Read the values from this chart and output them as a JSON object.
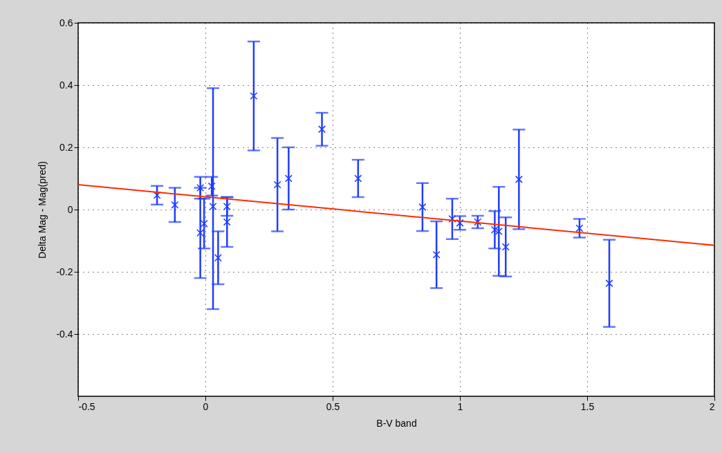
{
  "chart_data": {
    "type": "scatter",
    "xlabel": "B-V band",
    "ylabel": "Delta Mag - Mag(pred)",
    "xlim": [
      -0.5,
      2
    ],
    "xticks": [
      -0.5,
      0,
      0.5,
      1,
      1.5,
      2
    ],
    "ylim": [
      -0.6,
      0.6
    ],
    "yticks": [
      -0.4,
      -0.2,
      0,
      0.2,
      0.4,
      0.6
    ],
    "grid": true,
    "series": [
      {
        "color": "#1f3cff",
        "marker": "cross",
        "x": [
          -0.19,
          -0.12,
          -0.02,
          -0.02,
          -0.005,
          0.025,
          0.03,
          0.05,
          0.085,
          0.085,
          0.19,
          0.283,
          0.327,
          0.458,
          0.6,
          0.853,
          0.908,
          0.97,
          1.0,
          1.07,
          1.137,
          1.153,
          1.18,
          1.232,
          1.47,
          1.587
        ],
        "values": [
          0.046,
          0.015,
          0.07,
          -0.075,
          -0.045,
          0.075,
          0.01,
          -0.155,
          0.01,
          -0.04,
          0.365,
          0.08,
          0.1,
          0.258,
          0.1,
          0.008,
          -0.145,
          -0.03,
          -0.043,
          -0.04,
          -0.065,
          -0.07,
          -0.12,
          0.097,
          -0.06,
          -0.237
        ],
        "errors": [
          0.03,
          0.055,
          0.035,
          0.145,
          0.08,
          0.03,
          [
            -0.32,
            0.39
          ],
          0.085,
          0.03,
          0.08,
          0.175,
          0.15,
          0.1,
          0.053,
          0.06,
          0.077,
          0.107,
          0.065,
          0.022,
          0.02,
          0.06,
          0.143,
          0.095,
          0.16,
          0.03,
          0.14
        ]
      },
      {
        "type": "line",
        "color": "#ff2a00",
        "x": [
          -0.5,
          2
        ],
        "values": [
          0.08,
          -0.115
        ]
      }
    ]
  }
}
